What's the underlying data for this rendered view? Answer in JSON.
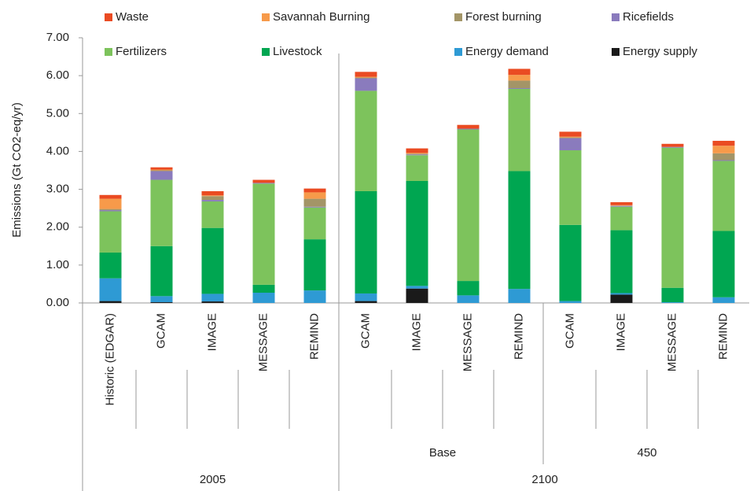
{
  "chart_data": {
    "type": "stacked_bar",
    "y_label": "Emissions (Gt CO2-eq/yr)",
    "ylim": [
      0,
      7
    ],
    "yticks": [
      {
        "value": 0,
        "label": "0.00"
      },
      {
        "value": 1,
        "label": "1.00"
      },
      {
        "value": 2,
        "label": "2.00"
      },
      {
        "value": 3,
        "label": "3.00"
      },
      {
        "value": 4,
        "label": "4.00"
      },
      {
        "value": 5,
        "label": "5.00"
      },
      {
        "value": 6,
        "label": "6.00"
      },
      {
        "value": 7,
        "label": "7.00"
      }
    ],
    "grid": false,
    "legend": "top",
    "groups": [
      {
        "name": "2005",
        "subgroups": [
          {
            "name": null,
            "categories": [
              "Historic (EDGAR)",
              "GCAM",
              "IMAGE",
              "MESSAGE",
              "REMIND"
            ]
          }
        ]
      },
      {
        "name": "2100",
        "subgroups": [
          {
            "name": "Base",
            "categories": [
              "GCAM",
              "IMAGE",
              "MESSAGE",
              "REMIND"
            ]
          },
          {
            "name": "450",
            "categories": [
              "GCAM",
              "IMAGE",
              "MESSAGE",
              "REMIND"
            ]
          }
        ]
      }
    ],
    "series": [
      {
        "name": "Energy supply",
        "color": "#1a1a1a",
        "values": [
          0.05,
          0.02,
          0.04,
          0,
          0,
          0.05,
          0.38,
          0,
          0,
          0,
          0.22,
          0,
          0
        ]
      },
      {
        "name": "Energy demand",
        "color": "#2e9ad4",
        "values": [
          0.6,
          0.16,
          0.2,
          0.27,
          0.33,
          0.2,
          0.07,
          0.2,
          0.37,
          0.05,
          0.04,
          0.02,
          0.15
        ]
      },
      {
        "name": "Livestock",
        "color": "#00a651",
        "values": [
          0.68,
          1.32,
          1.74,
          0.21,
          1.35,
          2.7,
          2.77,
          0.38,
          3.11,
          2.01,
          1.66,
          0.38,
          1.75
        ]
      },
      {
        "name": "Fertilizers",
        "color": "#7dc35c",
        "values": [
          1.09,
          1.75,
          0.7,
          2.67,
          0.84,
          2.65,
          0.68,
          4.0,
          2.17,
          1.97,
          0.62,
          3.7,
          1.85
        ]
      },
      {
        "name": "Ricefields",
        "color": "#8a7bbd",
        "values": [
          0.03,
          0.23,
          0.04,
          0.02,
          0.02,
          0.33,
          0.02,
          0.02,
          0.02,
          0.32,
          0.02,
          0.02,
          0.02
        ]
      },
      {
        "name": "Forest burning",
        "color": "#a39567",
        "values": [
          0.03,
          0.02,
          0.1,
          0,
          0.21,
          0.02,
          0.02,
          0,
          0.2,
          0.02,
          0.01,
          0,
          0.18
        ]
      },
      {
        "name": "Savannah Burning",
        "color": "#f79a4a",
        "values": [
          0.27,
          0.02,
          0.02,
          0,
          0.17,
          0.02,
          0.02,
          0,
          0.15,
          0.02,
          0.01,
          0,
          0.2
        ]
      },
      {
        "name": "Waste",
        "color": "#ea4b22",
        "values": [
          0.1,
          0.06,
          0.11,
          0.08,
          0.1,
          0.13,
          0.12,
          0.1,
          0.16,
          0.13,
          0.08,
          0.08,
          0.13
        ]
      }
    ]
  }
}
